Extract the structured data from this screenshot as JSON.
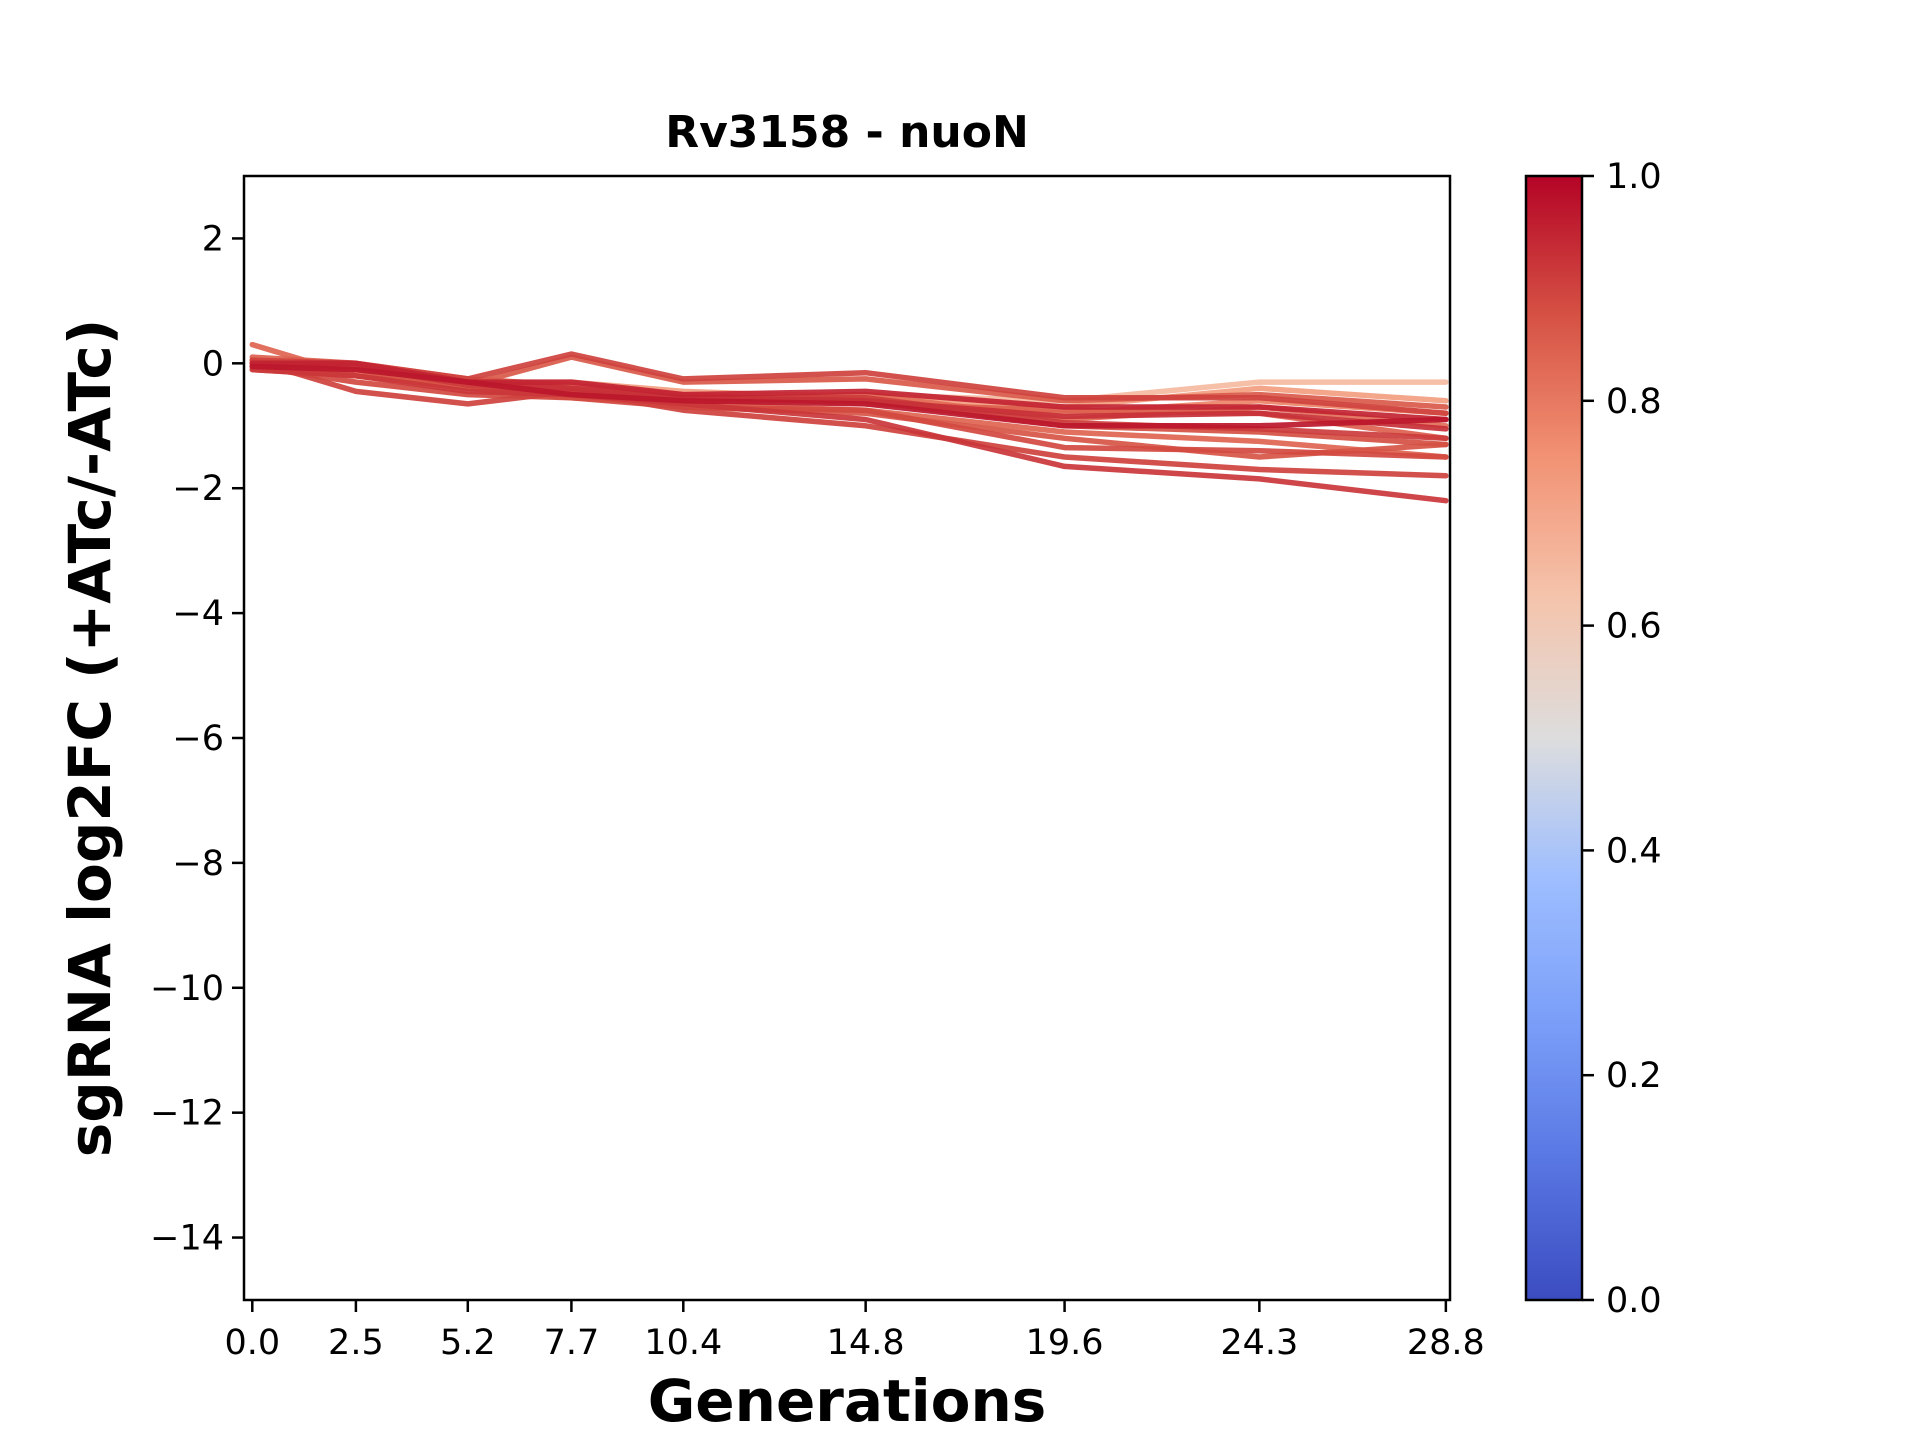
{
  "chart_data": {
    "type": "line",
    "title": "Rv3158 - nuoN",
    "xlabel": "Generations",
    "ylabel": "sgRNA log2FC (+ATc/-ATc)",
    "x": [
      0.0,
      2.5,
      5.2,
      7.7,
      10.4,
      14.8,
      19.6,
      24.3,
      28.8
    ],
    "x_tick_labels": [
      "0.0",
      "2.5",
      "5.2",
      "7.7",
      "10.4",
      "14.8",
      "19.6",
      "24.3",
      "28.8"
    ],
    "xlim": [
      -0.2,
      28.9
    ],
    "ylim": [
      -15,
      3
    ],
    "y_ticks": [
      2,
      0,
      -2,
      -4,
      -6,
      -8,
      -10,
      -12,
      -14
    ],
    "y_tick_labels": [
      "2",
      "0",
      "−2",
      "−4",
      "−6",
      "−8",
      "−10",
      "−12",
      "−14"
    ],
    "grid": false,
    "colorbar": {
      "colormap": "coolwarm",
      "range": [
        0.0,
        1.0
      ],
      "ticks": [
        1.0,
        0.8,
        0.6,
        0.4,
        0.2,
        0.0
      ],
      "tick_labels": [
        "1.0",
        "0.8",
        "0.6",
        "0.4",
        "0.2",
        "0.0"
      ]
    },
    "series": [
      {
        "values": [
          0.0,
          -0.1,
          -0.3,
          -0.4,
          -0.5,
          -0.5,
          -0.6,
          -0.3,
          -0.3
        ],
        "color_value": 0.65
      },
      {
        "values": [
          0.05,
          -0.15,
          -0.35,
          -0.3,
          -0.45,
          -0.55,
          -0.7,
          -0.4,
          -0.6
        ],
        "color_value": 0.72
      },
      {
        "values": [
          0.0,
          -0.05,
          -0.3,
          -0.4,
          -0.55,
          -0.6,
          -0.8,
          -0.6,
          -0.8
        ],
        "color_value": 0.78
      },
      {
        "values": [
          -0.1,
          -0.2,
          -0.3,
          -0.45,
          -0.6,
          -0.5,
          -0.9,
          -0.7,
          -1.0
        ],
        "color_value": 0.82
      },
      {
        "values": [
          0.1,
          0.0,
          -0.25,
          -0.35,
          -0.5,
          -0.65,
          -0.75,
          -0.8,
          -1.2
        ],
        "color_value": 0.85
      },
      {
        "values": [
          0.0,
          -0.1,
          -0.35,
          0.1,
          -0.3,
          -0.25,
          -0.6,
          -0.5,
          -0.7
        ],
        "color_value": 0.86
      },
      {
        "values": [
          0.05,
          0.0,
          -0.25,
          0.15,
          -0.25,
          -0.15,
          -0.55,
          -0.55,
          -0.8
        ],
        "color_value": 0.9
      },
      {
        "values": [
          0.0,
          0.0,
          -0.3,
          -0.3,
          -0.5,
          -0.45,
          -0.7,
          -0.7,
          -0.9
        ],
        "color_value": 0.95
      },
      {
        "values": [
          0.0,
          -0.05,
          -0.3,
          -0.4,
          -0.55,
          -0.6,
          -0.85,
          -0.8,
          -1.05
        ],
        "color_value": 0.93
      },
      {
        "values": [
          -0.05,
          -0.05,
          -0.35,
          -0.45,
          -0.55,
          -0.55,
          -0.95,
          -1.05,
          -1.2
        ],
        "color_value": 0.91
      },
      {
        "values": [
          -0.05,
          -0.1,
          -0.3,
          -0.5,
          -0.6,
          -0.65,
          -1.0,
          -1.0,
          -0.9
        ],
        "color_value": 0.97
      },
      {
        "values": [
          0.0,
          -0.05,
          -0.3,
          -0.4,
          -0.6,
          -0.6,
          -1.0,
          -1.1,
          -1.3
        ],
        "color_value": 0.88
      },
      {
        "values": [
          0.0,
          -0.2,
          -0.4,
          -0.5,
          -0.7,
          -0.8,
          -1.2,
          -1.5,
          -1.3
        ],
        "color_value": 0.87
      },
      {
        "values": [
          -0.05,
          -0.3,
          -0.5,
          -0.55,
          -0.7,
          -0.75,
          -1.35,
          -1.4,
          -1.5
        ],
        "color_value": 0.89
      },
      {
        "values": [
          0.05,
          -0.45,
          -0.65,
          -0.45,
          -0.75,
          -1.0,
          -1.5,
          -1.7,
          -1.8
        ],
        "color_value": 0.9
      },
      {
        "values": [
          -0.1,
          -0.2,
          -0.45,
          -0.5,
          -0.65,
          -0.9,
          -1.65,
          -1.85,
          -2.2
        ],
        "color_value": 0.92
      },
      {
        "values": [
          0.3,
          -0.2,
          -0.4,
          -0.55,
          -0.65,
          -0.75,
          -1.1,
          -1.25,
          -1.5
        ],
        "color_value": 0.84
      }
    ]
  }
}
